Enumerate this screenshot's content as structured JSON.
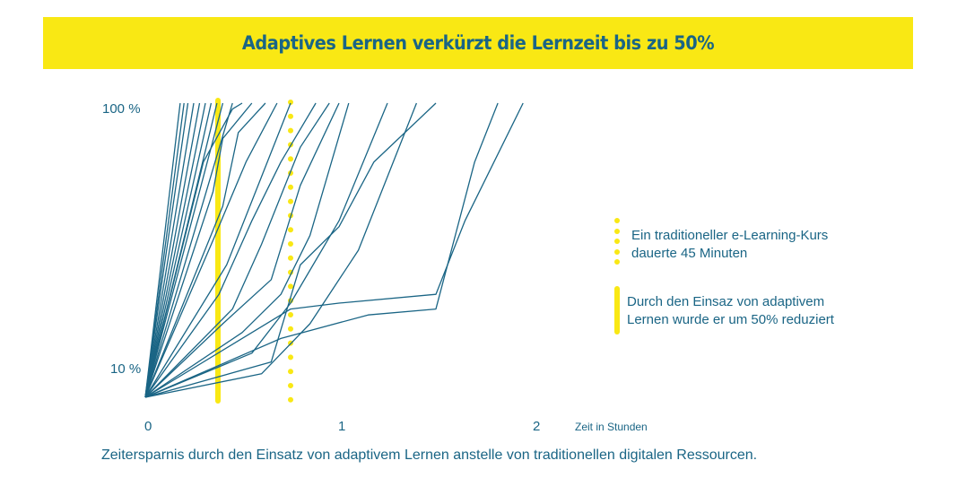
{
  "title": "Adaptives Lernen verkürzt die Lernzeit bis zu 50%",
  "caption": "Zeitersparnis durch den Einsatz von adaptivem Lernen anstelle von traditionellen digitalen Ressourcen.",
  "colors": {
    "accent": "#f9e814",
    "line": "#1a6585",
    "text": "#1a6585"
  },
  "legend": {
    "dotted_label_line1": "Ein traditioneller e-Learning-Kurs",
    "dotted_label_line2": "dauerte 45 Minuten",
    "solid_label_line1": "Durch den Einsaz von adaptivem",
    "solid_label_line2": "Lernen wurde er um 50% reduziert"
  },
  "chart_data": {
    "type": "line",
    "title": "Adaptives Lernen verkürzt die Lernzeit bis zu 50%",
    "xlabel": "Zeit in Stunden",
    "ylabel": "",
    "x_ticks": [
      "0",
      "1",
      "2"
    ],
    "y_ticks": [
      "10 %",
      "100 %"
    ],
    "xlim": [
      0,
      2.2
    ],
    "ylim": [
      0,
      100
    ],
    "reference_lines": [
      {
        "x": 0.375,
        "style": "solid",
        "color": "#f9e814"
      },
      {
        "x": 0.75,
        "style": "dotted",
        "color": "#f9e814"
      }
    ],
    "series": [
      {
        "points": [
          [
            0,
            0
          ],
          [
            0.18,
            100
          ]
        ]
      },
      {
        "points": [
          [
            0,
            0
          ],
          [
            0.2,
            100
          ]
        ]
      },
      {
        "points": [
          [
            0,
            0
          ],
          [
            0.22,
            100
          ]
        ]
      },
      {
        "points": [
          [
            0,
            0
          ],
          [
            0.25,
            100
          ]
        ]
      },
      {
        "points": [
          [
            0,
            0
          ],
          [
            0.28,
            100
          ]
        ]
      },
      {
        "points": [
          [
            0,
            0
          ],
          [
            0.31,
            100
          ]
        ]
      },
      {
        "points": [
          [
            0,
            0
          ],
          [
            0.34,
            100
          ]
        ]
      },
      {
        "points": [
          [
            0,
            0
          ],
          [
            0.37,
            100
          ]
        ]
      },
      {
        "points": [
          [
            0,
            0
          ],
          [
            0.4,
            100
          ]
        ]
      },
      {
        "points": [
          [
            0,
            0
          ],
          [
            0.45,
            100
          ]
        ]
      },
      {
        "points": [
          [
            0,
            0
          ],
          [
            0.3,
            80
          ],
          [
            0.45,
            98
          ],
          [
            0.5,
            100
          ]
        ]
      },
      {
        "points": [
          [
            0,
            0
          ],
          [
            0.35,
            70
          ],
          [
            0.4,
            88
          ],
          [
            0.55,
            100
          ]
        ]
      },
      {
        "points": [
          [
            0,
            0
          ],
          [
            0.4,
            65
          ],
          [
            0.48,
            90
          ],
          [
            0.62,
            100
          ]
        ]
      },
      {
        "points": [
          [
            0,
            0
          ],
          [
            0.36,
            55
          ],
          [
            0.52,
            80
          ],
          [
            0.68,
            100
          ]
        ]
      },
      {
        "points": [
          [
            0,
            0
          ],
          [
            0.42,
            45
          ],
          [
            0.6,
            75
          ],
          [
            0.75,
            100
          ]
        ]
      },
      {
        "points": [
          [
            0,
            0
          ],
          [
            0.38,
            35
          ],
          [
            0.55,
            60
          ],
          [
            0.7,
            80
          ],
          [
            0.88,
            100
          ]
        ]
      },
      {
        "points": [
          [
            0,
            0
          ],
          [
            0.45,
            30
          ],
          [
            0.6,
            52
          ],
          [
            0.8,
            85
          ],
          [
            0.95,
            100
          ]
        ]
      },
      {
        "points": [
          [
            0,
            0
          ],
          [
            0.4,
            25
          ],
          [
            0.65,
            40
          ],
          [
            0.8,
            72
          ],
          [
            1.0,
            100
          ]
        ]
      },
      {
        "points": [
          [
            0,
            0
          ],
          [
            0.5,
            22
          ],
          [
            0.7,
            35
          ],
          [
            0.85,
            55
          ],
          [
            1.05,
            100
          ]
        ]
      },
      {
        "points": [
          [
            0,
            0
          ],
          [
            0.55,
            15
          ],
          [
            0.75,
            32
          ],
          [
            1.0,
            60
          ],
          [
            1.25,
            100
          ]
        ]
      },
      {
        "points": [
          [
            0,
            0
          ],
          [
            0.6,
            8
          ],
          [
            0.85,
            25
          ],
          [
            1.1,
            50
          ],
          [
            1.25,
            75
          ],
          [
            1.4,
            100
          ]
        ]
      },
      {
        "points": [
          [
            0,
            0
          ],
          [
            0.65,
            12
          ],
          [
            0.8,
            45
          ],
          [
            1.0,
            58
          ],
          [
            1.18,
            80
          ],
          [
            1.5,
            100
          ]
        ]
      },
      {
        "points": [
          [
            0,
            0
          ],
          [
            0.7,
            20
          ],
          [
            1.15,
            28
          ],
          [
            1.5,
            30
          ],
          [
            1.7,
            80
          ],
          [
            1.82,
            100
          ]
        ]
      },
      {
        "points": [
          [
            0,
            0
          ],
          [
            0.75,
            30
          ],
          [
            1.0,
            32
          ],
          [
            1.5,
            35
          ],
          [
            1.65,
            60
          ],
          [
            1.95,
            100
          ]
        ]
      }
    ]
  }
}
